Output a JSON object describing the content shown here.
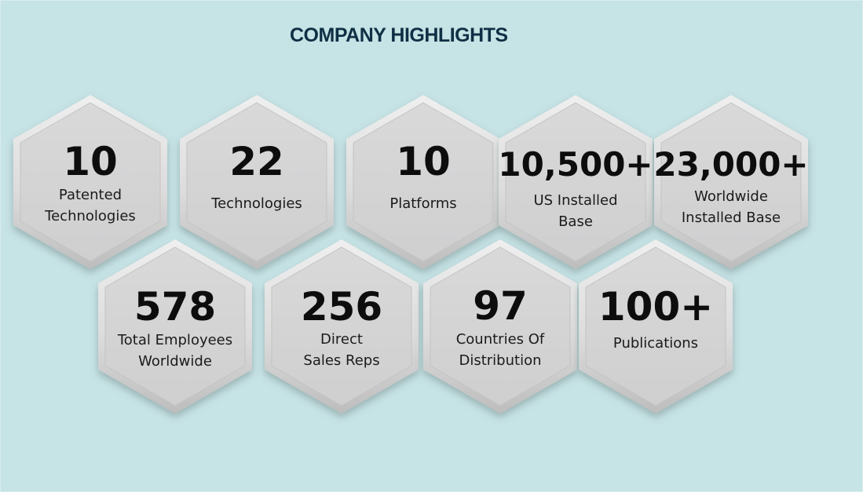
{
  "header": {
    "title": "COMPANY HIGHLIGHTS"
  },
  "colors": {
    "background": "#c6e3e5",
    "title": "#0f2f45",
    "hexagon_fill": "#d2d2d3",
    "hexagon_rim": "#e7e7e8"
  },
  "highlights": [
    {
      "value": "10",
      "label": "Patented\nTechnologies"
    },
    {
      "value": "22",
      "label": "Technologies"
    },
    {
      "value": "10",
      "label": "Platforms"
    },
    {
      "value": "10,500+",
      "label": "US Installed\nBase"
    },
    {
      "value": "23,000+",
      "label": "Worldwide\nInstalled Base"
    },
    {
      "value": "578",
      "label": "Total Employees\nWorldwide"
    },
    {
      "value": "256",
      "label": "Direct\nSales Reps"
    },
    {
      "value": "97",
      "label": "Countries Of\nDistribution"
    },
    {
      "value": "100+",
      "label": "Publications"
    }
  ]
}
